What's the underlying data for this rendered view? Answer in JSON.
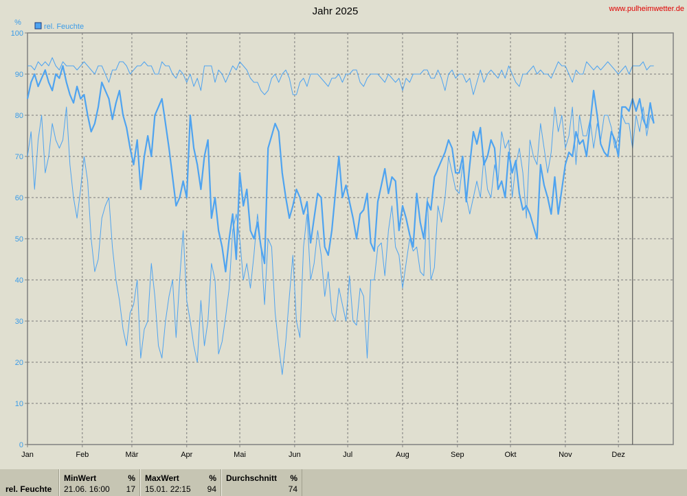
{
  "title": "Jahr 2025",
  "source": "www.pulheimwetter.de",
  "colors": {
    "series": "#4ea3f0",
    "background": "#e0dfd0",
    "grid": "#7a7a7a",
    "axis": "#808080",
    "tick_text": "#3a9be8"
  },
  "chart_data": {
    "type": "line",
    "title": "Jahr 2025",
    "ylabel": "%",
    "ylim": [
      0,
      100
    ],
    "yticks": [
      0,
      10,
      20,
      30,
      40,
      50,
      60,
      70,
      80,
      90,
      100
    ],
    "xlim": [
      0,
      365
    ],
    "xtick_labels": [
      "Jan",
      "Feb",
      "Mär",
      "Apr",
      "Mai",
      "Jun",
      "Jul",
      "Aug",
      "Sep",
      "Okt",
      "Nov",
      "Dez"
    ],
    "xtick_days": [
      0,
      31,
      59,
      90,
      120,
      151,
      181,
      212,
      243,
      273,
      304,
      334
    ],
    "data_end_day": 342,
    "grid": true,
    "legend_position": "top-left",
    "series": [
      {
        "name": "rel. Feuchte",
        "kind": "daily_mean_approx",
        "x_step_days": 2,
        "values": [
          84,
          88,
          90,
          87,
          89,
          91,
          88,
          86,
          90,
          89,
          92,
          88,
          85,
          83,
          87,
          84,
          85,
          80,
          76,
          78,
          82,
          88,
          86,
          84,
          79,
          83,
          86,
          80,
          77,
          72,
          68,
          74,
          62,
          70,
          75,
          70,
          80,
          82,
          84,
          78,
          72,
          65,
          58,
          60,
          64,
          60,
          80,
          72,
          68,
          62,
          70,
          74,
          55,
          60,
          52,
          48,
          42,
          50,
          56,
          45,
          66,
          58,
          62,
          52,
          50,
          54,
          48,
          44,
          72,
          75,
          78,
          76,
          66,
          60,
          55,
          58,
          62,
          60,
          56,
          59,
          49,
          55,
          61,
          60,
          48,
          46,
          52,
          61,
          70,
          60,
          63,
          59,
          55,
          50,
          56,
          57,
          61,
          49,
          47,
          59,
          63,
          67,
          61,
          65,
          64,
          52,
          58,
          55,
          51,
          48,
          61,
          54,
          50,
          59,
          57,
          65,
          67,
          69,
          71,
          74,
          72,
          66,
          66,
          70,
          59,
          68,
          76,
          73,
          77,
          68,
          70,
          74,
          72,
          62,
          64,
          60,
          71,
          66,
          69,
          61,
          57,
          58,
          56,
          53,
          50,
          68,
          63,
          60,
          56,
          65,
          56,
          62,
          68,
          71,
          70,
          76,
          73,
          74,
          70,
          78,
          86,
          80,
          73,
          71,
          70,
          76,
          74,
          70,
          82,
          82,
          81,
          84,
          81,
          84,
          79,
          77,
          83,
          78
        ]
      },
      {
        "name": "rel. Feuchte",
        "kind": "daily_max_approx",
        "x_step_days": 2,
        "values": [
          92,
          92,
          91,
          93,
          92,
          93,
          92,
          94,
          92,
          91,
          93,
          92,
          92,
          92,
          91,
          92,
          93,
          92,
          91,
          90,
          92,
          92,
          90,
          88,
          91,
          91,
          93,
          93,
          92,
          90,
          91,
          92,
          92,
          93,
          92,
          92,
          90,
          90,
          93,
          92,
          92,
          90,
          89,
          91,
          90,
          88,
          90,
          87,
          89,
          86,
          92,
          92,
          92,
          88,
          91,
          90,
          88,
          90,
          92,
          91,
          93,
          92,
          91,
          89,
          88,
          88,
          86,
          85,
          86,
          89,
          90,
          88,
          90,
          91,
          89,
          85,
          85,
          88,
          89,
          87,
          90,
          90,
          90,
          89,
          88,
          87,
          89,
          89,
          90,
          88,
          90,
          90,
          91,
          91,
          88,
          87,
          89,
          90,
          90,
          90,
          89,
          88,
          90,
          89,
          88,
          89,
          86,
          89,
          88,
          90,
          90,
          90,
          91,
          91,
          89,
          89,
          91,
          89,
          86,
          90,
          91,
          89,
          90,
          90,
          88,
          89,
          85,
          88,
          91,
          88,
          90,
          91,
          90,
          89,
          91,
          89,
          92,
          90,
          88,
          87,
          90,
          90,
          91,
          92,
          90,
          91,
          90,
          90,
          89,
          91,
          93,
          92,
          92,
          90,
          88,
          91,
          90,
          90,
          93,
          92,
          91,
          92,
          91,
          92,
          93,
          92,
          91,
          90,
          91,
          92,
          90,
          92,
          92,
          92,
          93,
          91,
          92,
          92
        ]
      },
      {
        "name": "rel. Feuchte",
        "kind": "daily_min_approx",
        "x_step_days": 2,
        "values": [
          70,
          76,
          62,
          74,
          80,
          66,
          70,
          78,
          74,
          72,
          74,
          82,
          68,
          60,
          55,
          62,
          70,
          64,
          50,
          42,
          45,
          55,
          58,
          60,
          48,
          40,
          35,
          28,
          24,
          32,
          34,
          40,
          21,
          28,
          30,
          44,
          36,
          24,
          21,
          30,
          36,
          40,
          26,
          40,
          52,
          35,
          30,
          24,
          20,
          35,
          24,
          30,
          44,
          40,
          22,
          25,
          31,
          38,
          52,
          56,
          50,
          40,
          44,
          38,
          46,
          56,
          48,
          34,
          50,
          48,
          32,
          24,
          17,
          25,
          36,
          46,
          30,
          26,
          48,
          56,
          40,
          44,
          52,
          46,
          36,
          42,
          32,
          30,
          38,
          34,
          30,
          41,
          30,
          29,
          38,
          36,
          21,
          40,
          40,
          48,
          49,
          41,
          52,
          58,
          48,
          46,
          38,
          44,
          50,
          47,
          48,
          42,
          41,
          60,
          40,
          43,
          58,
          54,
          60,
          70,
          66,
          62,
          61,
          68,
          60,
          56,
          60,
          64,
          60,
          70,
          62,
          60,
          68,
          64,
          76,
          72,
          74,
          60,
          68,
          72,
          66,
          55,
          74,
          70,
          68,
          78,
          72,
          66,
          71,
          82,
          76,
          80,
          72,
          75,
          82,
          68,
          80,
          75,
          75,
          79,
          72,
          78,
          74,
          80,
          80,
          77,
          72,
          75,
          80,
          78,
          78,
          72,
          80,
          76,
          82,
          75,
          80,
          78
        ]
      }
    ]
  },
  "stats": {
    "row_label": "rel. Feuchte",
    "min": {
      "header": "MinWert",
      "unit": "%",
      "when": "21.06.  16:00",
      "value": "17"
    },
    "max": {
      "header": "MaxWert",
      "unit": "%",
      "when": "15.01.  22:15",
      "value": "94"
    },
    "avg": {
      "header": "Durchschnitt",
      "unit": "%",
      "when": "",
      "value": "74"
    }
  }
}
